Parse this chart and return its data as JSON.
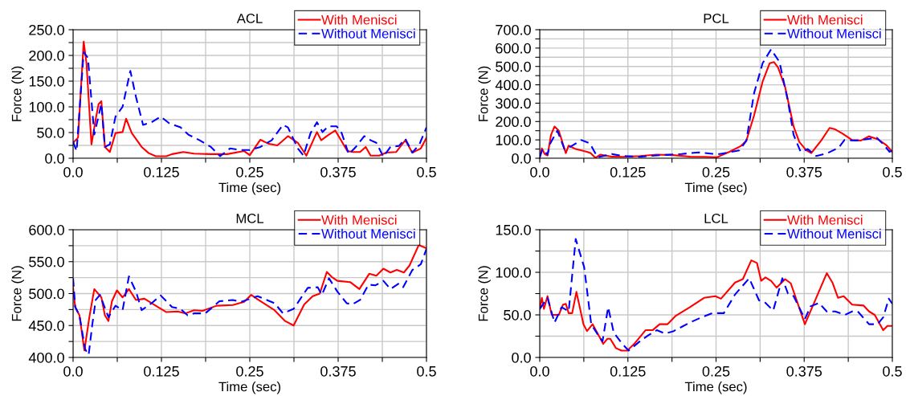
{
  "chart_data": [
    {
      "type": "line",
      "title": "ACL",
      "xlabel": "Time (sec)",
      "ylabel": "Force (N)",
      "legend": "top right",
      "grid": true,
      "xlim": [
        0,
        0.5
      ],
      "xticks": [
        {
          "value": 0,
          "label": "0.0"
        },
        {
          "value": 0.0625,
          "label": null
        },
        0.125,
        {
          "value": 0.1875,
          "label": null
        },
        0.25,
        {
          "value": 0.3125,
          "label": null
        },
        0.375,
        {
          "value": 0.4375,
          "label": null
        },
        0.5
      ],
      "ylim": [
        0,
        250
      ],
      "yticks": [
        {
          "value": 0,
          "label": "0.0"
        },
        {
          "value": 25,
          "label": null
        },
        {
          "value": 50,
          "label": "50.0"
        },
        {
          "value": 75,
          "label": null
        },
        {
          "value": 100,
          "label": "100.0"
        },
        {
          "value": 125,
          "label": null
        },
        {
          "value": 150,
          "label": "150.0"
        },
        {
          "value": 175,
          "label": null
        },
        {
          "value": 200,
          "label": "200.0"
        },
        {
          "value": 225,
          "label": null
        },
        {
          "value": 250,
          "label": "250.0"
        }
      ],
      "series": [
        {
          "name": "With Menisci",
          "color": "#ff0000",
          "line_style": "solid",
          "x": [
            0,
            0.007,
            0.015,
            0.019,
            0.026,
            0.032,
            0.036,
            0.04,
            0.045,
            0.052,
            0.06,
            0.07,
            0.075,
            0.083,
            0.097,
            0.107,
            0.117,
            0.132,
            0.14,
            0.156,
            0.171,
            0.195,
            0.218,
            0.242,
            0.25,
            0.265,
            0.277,
            0.289,
            0.304,
            0.318,
            0.33,
            0.345,
            0.351,
            0.361,
            0.371,
            0.388,
            0.396,
            0.406,
            0.414,
            0.421,
            0.433,
            0.443,
            0.457,
            0.47,
            0.48,
            0.492,
            0.5
          ],
          "values": [
            30,
            40,
            227,
            184,
            27,
            76,
            105,
            111,
            22,
            12,
            49,
            51,
            77,
            49,
            22,
            10,
            4,
            4,
            8,
            12,
            9,
            8,
            8,
            14,
            6,
            36,
            28,
            25,
            43,
            30,
            5,
            51,
            35,
            45,
            54,
            14,
            12,
            12,
            22,
            5,
            5,
            11,
            12,
            35,
            11,
            19,
            40
          ]
        },
        {
          "name": "Without Menisci",
          "color": "#0000ff",
          "line_style": "dashed",
          "x": [
            0,
            0.005,
            0.011,
            0.015,
            0.021,
            0.03,
            0.04,
            0.045,
            0.052,
            0.06,
            0.07,
            0.081,
            0.089,
            0.099,
            0.111,
            0.124,
            0.136,
            0.152,
            0.163,
            0.179,
            0.195,
            0.208,
            0.222,
            0.238,
            0.25,
            0.265,
            0.281,
            0.297,
            0.304,
            0.318,
            0.326,
            0.336,
            0.345,
            0.353,
            0.361,
            0.373,
            0.38,
            0.39,
            0.4,
            0.412,
            0.421,
            0.429,
            0.439,
            0.449,
            0.461,
            0.47,
            0.48,
            0.49,
            0.5
          ],
          "values": [
            32,
            14,
            130,
            206,
            195,
            46,
            106,
            22,
            27,
            81,
            100,
            170,
            119,
            65,
            70,
            81,
            68,
            60,
            46,
            35,
            22,
            4,
            19,
            16,
            16,
            22,
            35,
            65,
            60,
            19,
            5,
            49,
            70,
            51,
            62,
            62,
            49,
            8,
            22,
            43,
            35,
            30,
            3,
            22,
            24,
            38,
            11,
            27,
            60
          ]
        }
      ]
    },
    {
      "type": "line",
      "title": "PCL",
      "xlabel": "Time (sec)",
      "ylabel": "Force (N)",
      "legend": "top right",
      "grid": true,
      "xlim": [
        0,
        0.5
      ],
      "xticks": [
        {
          "value": 0,
          "label": "0.0"
        },
        {
          "value": 0.0625,
          "label": null
        },
        0.125,
        {
          "value": 0.1875,
          "label": null
        },
        0.25,
        {
          "value": 0.3125,
          "label": null
        },
        0.375,
        {
          "value": 0.4375,
          "label": null
        },
        0.5
      ],
      "ylim": [
        0,
        700
      ],
      "yticks": [
        {
          "value": 0,
          "label": "0.0"
        },
        {
          "value": 50,
          "label": null
        },
        {
          "value": 100,
          "label": "100.0"
        },
        {
          "value": 150,
          "label": null
        },
        {
          "value": 200,
          "label": "200.0"
        },
        {
          "value": 250,
          "label": null
        },
        {
          "value": 300,
          "label": "300.0"
        },
        {
          "value": 350,
          "label": null
        },
        {
          "value": 400,
          "label": "400.0"
        },
        {
          "value": 450,
          "label": null
        },
        {
          "value": 500,
          "label": "500.0"
        },
        {
          "value": 550,
          "label": null
        },
        {
          "value": 600,
          "label": "600.0"
        },
        {
          "value": 650,
          "label": null
        },
        {
          "value": 700,
          "label": "700.0"
        }
      ],
      "series": [
        {
          "name": "With Menisci",
          "color": "#ff0000",
          "line_style": "solid",
          "x": [
            0,
            0.003,
            0.007,
            0.011,
            0.016,
            0.021,
            0.027,
            0.037,
            0.041,
            0.051,
            0.067,
            0.072,
            0.079,
            0.086,
            0.102,
            0.118,
            0.142,
            0.166,
            0.189,
            0.213,
            0.233,
            0.251,
            0.269,
            0.285,
            0.293,
            0.304,
            0.316,
            0.326,
            0.332,
            0.338,
            0.348,
            0.36,
            0.368,
            0.378,
            0.385,
            0.399,
            0.411,
            0.419,
            0.429,
            0.443,
            0.455,
            0.467,
            0.479,
            0.491,
            0.5
          ],
          "values": [
            5,
            54,
            23,
            15,
            127,
            173,
            150,
            28,
            69,
            50,
            35,
            28,
            2,
            20,
            9,
            8,
            12,
            20,
            17,
            9,
            8,
            5,
            35,
            66,
            96,
            234,
            417,
            517,
            524,
            494,
            387,
            173,
            89,
            43,
            28,
            96,
            165,
            157,
            135,
            99,
            96,
            119,
            104,
            73,
            35
          ]
        },
        {
          "name": "Without Menisci",
          "color": "#0000ff",
          "line_style": "dashed",
          "x": [
            0,
            0.004,
            0.011,
            0.015,
            0.025,
            0.035,
            0.045,
            0.059,
            0.071,
            0.082,
            0.102,
            0.118,
            0.142,
            0.173,
            0.201,
            0.225,
            0.245,
            0.255,
            0.283,
            0.293,
            0.304,
            0.316,
            0.328,
            0.34,
            0.352,
            0.36,
            0.37,
            0.38,
            0.392,
            0.408,
            0.424,
            0.432,
            0.448,
            0.464,
            0.478,
            0.488,
            0.496,
            0.5
          ],
          "values": [
            5,
            50,
            20,
            81,
            150,
            50,
            66,
            99,
            81,
            5,
            23,
            12,
            8,
            17,
            23,
            32,
            24,
            23,
            43,
            96,
            356,
            517,
            593,
            524,
            310,
            127,
            35,
            50,
            12,
            28,
            58,
            99,
            96,
            104,
            112,
            73,
            35,
            43
          ]
        }
      ]
    },
    {
      "type": "line",
      "title": "MCL",
      "xlabel": "Time (sec)",
      "ylabel": "Force (N)",
      "legend": "top right",
      "grid": true,
      "xlim": [
        0,
        0.5
      ],
      "xticks": [
        {
          "value": 0,
          "label": "0.0"
        },
        {
          "value": 0.0625,
          "label": null
        },
        0.125,
        {
          "value": 0.1875,
          "label": null
        },
        0.25,
        {
          "value": 0.3125,
          "label": null
        },
        0.375,
        {
          "value": 0.4375,
          "label": null
        },
        0.5
      ],
      "ylim": [
        400,
        600
      ],
      "yticks": [
        {
          "value": 400,
          "label": "400.0"
        },
        {
          "value": 425,
          "label": null
        },
        {
          "value": 450,
          "label": "450.0"
        },
        {
          "value": 475,
          "label": null
        },
        {
          "value": 500,
          "label": "500.0"
        },
        {
          "value": 525,
          "label": null
        },
        {
          "value": 550,
          "label": "550.0"
        },
        {
          "value": 575,
          "label": null
        },
        {
          "value": 600,
          "label": "600.0"
        }
      ],
      "series": [
        {
          "name": "With Menisci",
          "color": "#ff0000",
          "line_style": "solid",
          "x": [
            0,
            0.003,
            0.009,
            0.016,
            0.023,
            0.03,
            0.04,
            0.045,
            0.05,
            0.055,
            0.062,
            0.07,
            0.079,
            0.089,
            0.101,
            0.117,
            0.132,
            0.148,
            0.159,
            0.171,
            0.183,
            0.203,
            0.226,
            0.242,
            0.252,
            0.261,
            0.285,
            0.3,
            0.312,
            0.327,
            0.339,
            0.349,
            0.359,
            0.366,
            0.374,
            0.392,
            0.405,
            0.419,
            0.429,
            0.439,
            0.449,
            0.458,
            0.468,
            0.476,
            0.489,
            0.5
          ],
          "values": [
            509,
            479,
            466,
            411,
            463,
            507,
            494,
            466,
            457,
            488,
            505,
            494,
            507,
            490,
            492,
            481,
            471,
            472,
            469,
            474,
            473,
            481,
            482,
            487,
            498,
            491,
            474,
            457,
            450,
            483,
            496,
            500,
            534,
            526,
            520,
            518,
            507,
            531,
            528,
            539,
            533,
            537,
            533,
            544,
            576,
            571
          ]
        },
        {
          "name": "Without Menisci",
          "color": "#0000ff",
          "line_style": "dashed",
          "x": [
            0,
            0.003,
            0.009,
            0.017,
            0.022,
            0.027,
            0.032,
            0.038,
            0.05,
            0.06,
            0.07,
            0.079,
            0.089,
            0.097,
            0.111,
            0.124,
            0.14,
            0.152,
            0.162,
            0.171,
            0.187,
            0.207,
            0.226,
            0.238,
            0.261,
            0.285,
            0.297,
            0.312,
            0.332,
            0.346,
            0.352,
            0.362,
            0.374,
            0.387,
            0.395,
            0.406,
            0.418,
            0.428,
            0.439,
            0.449,
            0.461,
            0.467,
            0.48,
            0.492,
            0.5
          ],
          "values": [
            524,
            479,
            466,
            413,
            404,
            450,
            490,
            498,
            463,
            481,
            474,
            527,
            503,
            474,
            485,
            497,
            479,
            476,
            466,
            469,
            469,
            488,
            490,
            487,
            496,
            485,
            469,
            476,
            509,
            510,
            498,
            524,
            503,
            485,
            483,
            490,
            514,
            513,
            520,
            507,
            516,
            510,
            537,
            546,
            570
          ]
        }
      ]
    },
    {
      "type": "line",
      "title": "LCL",
      "xlabel": "Time (sec)",
      "ylabel": "Force (N)",
      "legend": "top right",
      "grid": true,
      "xlim": [
        0,
        0.5
      ],
      "xticks": [
        {
          "value": 0,
          "label": "0.0"
        },
        {
          "value": 0.0625,
          "label": null
        },
        0.125,
        {
          "value": 0.1875,
          "label": null
        },
        0.25,
        {
          "value": 0.3125,
          "label": null
        },
        0.375,
        {
          "value": 0.4375,
          "label": null
        },
        0.5
      ],
      "ylim": [
        0,
        150
      ],
      "yticks": [
        {
          "value": 0,
          "label": "0.0"
        },
        {
          "value": 25,
          "label": null
        },
        {
          "value": 50,
          "label": "50.0"
        },
        {
          "value": 75,
          "label": null
        },
        {
          "value": 100,
          "label": "100.0"
        },
        {
          "value": 125,
          "label": null
        },
        {
          "value": 150,
          "label": "150.0"
        }
      ],
      "series": [
        {
          "name": "With Menisci",
          "color": "#ff0000",
          "line_style": "solid",
          "x": [
            0,
            0.003,
            0.006,
            0.011,
            0.017,
            0.027,
            0.033,
            0.037,
            0.041,
            0.046,
            0.052,
            0.062,
            0.067,
            0.075,
            0.09,
            0.096,
            0.1,
            0.108,
            0.116,
            0.124,
            0.134,
            0.15,
            0.16,
            0.17,
            0.181,
            0.193,
            0.213,
            0.233,
            0.249,
            0.257,
            0.277,
            0.288,
            0.3,
            0.308,
            0.314,
            0.32,
            0.328,
            0.336,
            0.348,
            0.356,
            0.376,
            0.389,
            0.407,
            0.415,
            0.423,
            0.431,
            0.443,
            0.459,
            0.467,
            0.475,
            0.487,
            0.493,
            0.5
          ],
          "values": [
            57,
            70,
            57,
            72,
            50,
            50,
            62,
            63,
            52,
            52,
            77,
            39,
            31,
            39,
            16,
            22,
            22,
            11,
            8,
            8,
            16,
            32,
            32,
            39,
            39,
            49,
            59,
            70,
            72,
            69,
            88,
            92,
            114,
            111,
            90,
            94,
            90,
            82,
            92,
            87,
            39,
            64,
            99,
            88,
            70,
            72,
            62,
            61,
            54,
            50,
            32,
            37,
            37
          ]
        },
        {
          "name": "Without Menisci",
          "color": "#0000ff",
          "line_style": "dashed",
          "x": [
            0,
            0.011,
            0.021,
            0.031,
            0.041,
            0.051,
            0.063,
            0.073,
            0.083,
            0.089,
            0.097,
            0.105,
            0.116,
            0.126,
            0.142,
            0.154,
            0.166,
            0.178,
            0.19,
            0.213,
            0.229,
            0.245,
            0.261,
            0.277,
            0.297,
            0.311,
            0.319,
            0.331,
            0.344,
            0.352,
            0.36,
            0.376,
            0.384,
            0.396,
            0.407,
            0.419,
            0.433,
            0.443,
            0.451,
            0.467,
            0.479,
            0.487,
            0.495,
            0.5
          ],
          "values": [
            57,
            70,
            41,
            59,
            54,
            139,
            106,
            39,
            26,
            19,
            59,
            29,
            17,
            8,
            19,
            26,
            32,
            28,
            31,
            41,
            47,
            52,
            52,
            74,
            93,
            67,
            65,
            55,
            93,
            75,
            72,
            45,
            60,
            64,
            54,
            54,
            50,
            54,
            54,
            39,
            39,
            47,
            69,
            63
          ]
        }
      ]
    }
  ]
}
